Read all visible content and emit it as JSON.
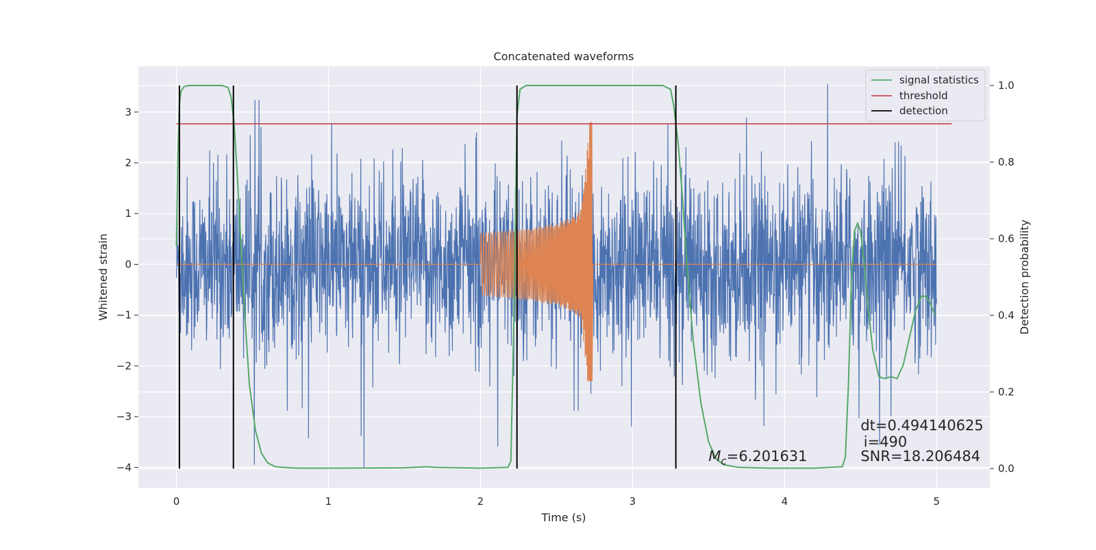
{
  "chart_data": {
    "type": "line",
    "title": "Concatenated waveforms",
    "xlabel": "Time (s)",
    "ylabel": "Whitened strain",
    "y2label": "Detection probability",
    "xlim": [
      -0.25,
      5.35
    ],
    "ylim": [
      -4.4,
      3.9
    ],
    "y2lim": [
      -0.05,
      1.05
    ],
    "xticks": [
      0,
      1,
      2,
      3,
      4,
      5
    ],
    "xtick_labels": [
      "0",
      "1",
      "2",
      "3",
      "4",
      "5"
    ],
    "yticks": [
      3,
      2,
      1,
      0,
      -1,
      -2,
      -3,
      -4
    ],
    "ytick_labels": [
      "3",
      "2",
      "1",
      "0",
      "−1",
      "−2",
      "−3",
      "−4"
    ],
    "y2ticks": [
      1.0,
      0.8,
      0.6,
      0.4,
      0.2,
      0.0
    ],
    "y2tick_labels": [
      "1.0",
      "0.8",
      "0.6",
      "0.4",
      "0.2",
      "0.0"
    ],
    "grid": true,
    "legend_position": "top-right",
    "colors": {
      "background": "#eaeaf2",
      "grid": "#ffffff",
      "strain": "#4c72b0",
      "template": "#dd8452",
      "signal_statistics": "#55a868",
      "threshold": "#c44e52",
      "detection": "#000000"
    },
    "series": [
      {
        "name": "signal statistics",
        "axis": "right",
        "x": [
          0,
          0.01,
          0.02,
          0.03,
          0.05,
          0.08,
          0.12,
          0.2,
          0.3,
          0.34,
          0.36,
          0.38,
          0.4,
          0.42,
          0.45,
          0.48,
          0.52,
          0.56,
          0.6,
          0.65,
          0.7,
          0.8,
          1.0,
          1.5,
          1.65,
          1.7,
          2.0,
          2.18,
          2.2,
          2.22,
          2.24,
          2.26,
          2.3,
          2.5,
          3.0,
          3.2,
          3.25,
          3.27,
          3.3,
          3.33,
          3.36,
          3.4,
          3.45,
          3.5,
          3.55,
          3.6,
          3.7,
          3.9,
          4.2,
          4.38,
          4.4,
          4.42,
          4.44,
          4.46,
          4.48,
          4.5,
          4.52,
          4.55,
          4.58,
          4.62,
          4.66,
          4.7,
          4.74,
          4.78,
          4.82,
          4.86,
          4.9,
          4.93,
          4.96,
          4.99
        ],
        "values": [
          0.58,
          0.82,
          0.95,
          0.985,
          0.997,
          1.0,
          1.0,
          1.0,
          1.0,
          0.995,
          0.97,
          0.9,
          0.77,
          0.62,
          0.4,
          0.22,
          0.1,
          0.04,
          0.015,
          0.005,
          0.003,
          0.001,
          0.001,
          0.002,
          0.005,
          0.003,
          0.001,
          0.003,
          0.02,
          0.4,
          0.92,
          0.99,
          1.0,
          1.0,
          1.0,
          1.0,
          0.99,
          0.95,
          0.85,
          0.7,
          0.52,
          0.33,
          0.17,
          0.07,
          0.025,
          0.01,
          0.003,
          0.001,
          0.001,
          0.005,
          0.03,
          0.22,
          0.5,
          0.62,
          0.64,
          0.62,
          0.55,
          0.42,
          0.31,
          0.24,
          0.235,
          0.24,
          0.235,
          0.27,
          0.34,
          0.41,
          0.45,
          0.45,
          0.43,
          0.4
        ]
      },
      {
        "name": "threshold",
        "axis": "right",
        "x": [
          0,
          5.1
        ],
        "values": [
          0.9,
          0.9
        ]
      },
      {
        "name": "detection",
        "axis": "right",
        "x": [
          0.02,
          0.375,
          2.24,
          3.285
        ],
        "values": [
          [
            0,
            1
          ],
          [
            0,
            1
          ],
          [
            0,
            1
          ],
          [
            0,
            1
          ]
        ]
      }
    ],
    "annotations": [
      {
        "text": "dt=0.494140625",
        "x": 4.5,
        "y": 0.1
      },
      {
        "text": "i=490",
        "x": 4.52,
        "y": 0.057
      },
      {
        "text": "SNR=18.206484",
        "x": 4.5,
        "y": 0.02
      },
      {
        "text_main": "M",
        "text_sub": "c",
        "text_rest": "=6.201631",
        "x": 3.5,
        "y": 0.02
      }
    ]
  }
}
